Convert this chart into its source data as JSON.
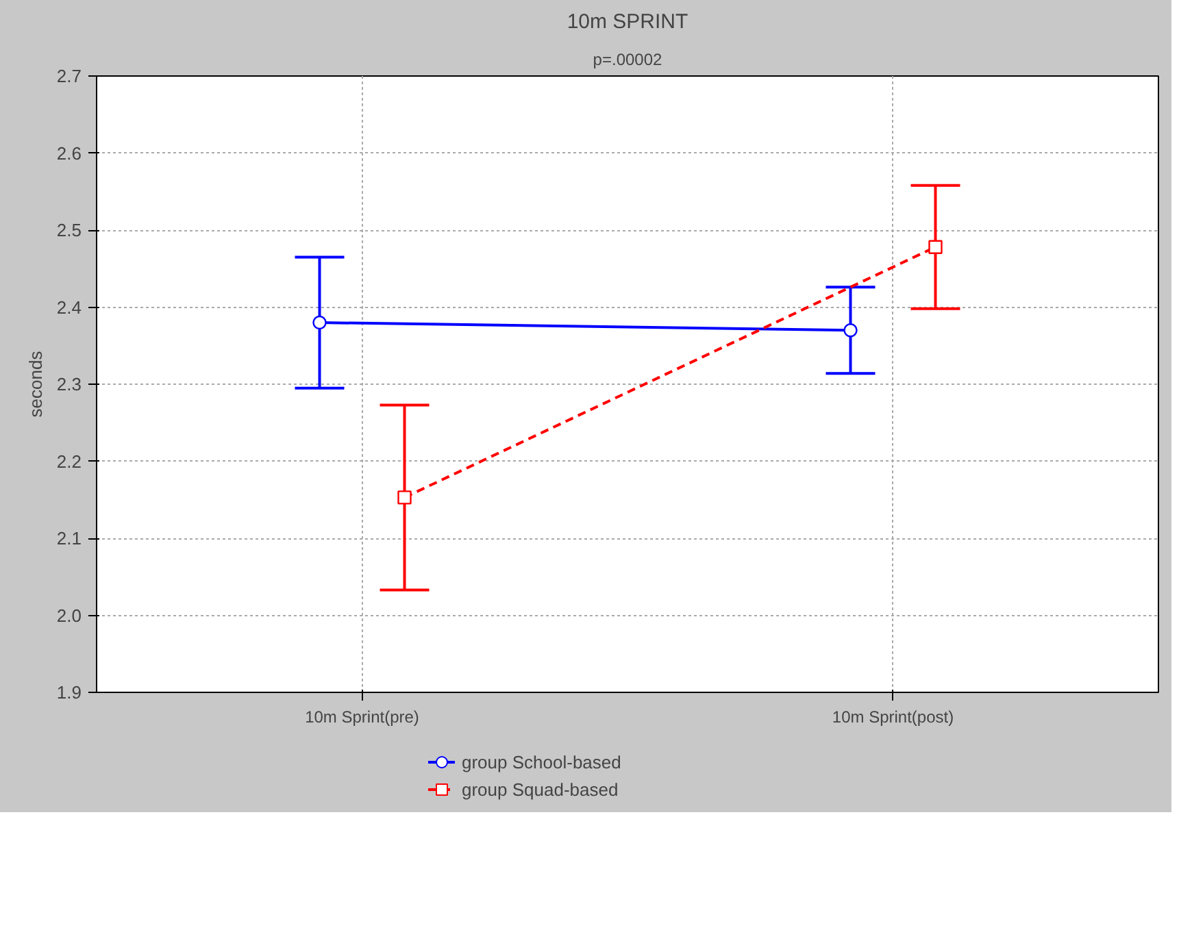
{
  "chart_data": {
    "type": "line",
    "title": "10m SPRINT",
    "subtitle": "p=.00002",
    "ylabel": "seconds",
    "categories": [
      "10m Sprint(pre)",
      "10m Sprint(post)"
    ],
    "series": [
      {
        "name": "group School-based",
        "color": "#0000ff",
        "values": [
          2.38,
          2.37
        ],
        "errors": [
          0.085,
          0.056
        ],
        "marker": "circle",
        "line_style": "solid"
      },
      {
        "name": "group Squad-based",
        "color": "#ff0000",
        "values": [
          2.153,
          2.478
        ],
        "errors": [
          0.12,
          0.08
        ],
        "marker": "square",
        "line_style": "dashed"
      }
    ],
    "ylim": [
      1.9,
      2.7
    ],
    "yticks": [
      {
        "value": 1.9,
        "label": "1.9"
      },
      {
        "value": 2.0,
        "label": "2.0"
      },
      {
        "value": 2.1,
        "label": "2.1"
      },
      {
        "value": 2.2,
        "label": "2.2"
      },
      {
        "value": 2.3,
        "label": "2.3"
      },
      {
        "value": 2.4,
        "label": "2.4"
      },
      {
        "value": 2.5,
        "label": "2.5"
      },
      {
        "value": 2.6,
        "label": "2.6"
      },
      {
        "value": 2.7,
        "label": "2.7"
      }
    ],
    "grid": true,
    "legend": "bottom"
  }
}
